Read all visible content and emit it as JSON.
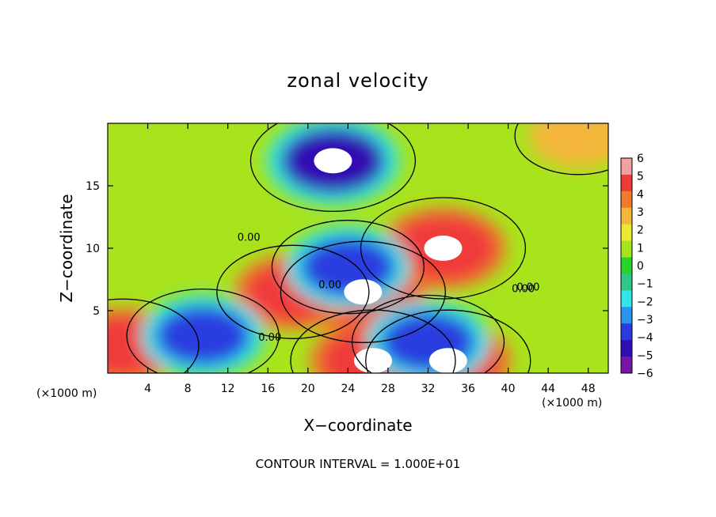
{
  "chart_data": {
    "type": "heatmap",
    "title": "zonal velocity",
    "xlabel": "X−coordinate",
    "ylabel": "Z−coordinate",
    "x_unit_left": "(×1000 m)",
    "x_unit_right": "(×1000 m)",
    "note": "CONTOUR INTERVAL = 1.000E+01",
    "xlim": [
      0,
      50
    ],
    "ylim": [
      0,
      20
    ],
    "x_ticks": [
      "4",
      "8",
      "12",
      "16",
      "20",
      "24",
      "28",
      "32",
      "36",
      "40",
      "44",
      "48"
    ],
    "x_tick_values": [
      4,
      8,
      12,
      16,
      20,
      24,
      28,
      32,
      36,
      40,
      44,
      48
    ],
    "y_ticks": [
      "5",
      "10",
      "15"
    ],
    "y_tick_values": [
      5,
      10,
      15
    ],
    "colorbar": {
      "labels": [
        "6",
        "5",
        "4",
        "3",
        "2",
        "1",
        "0",
        "−1",
        "−2",
        "−3",
        "−4",
        "−5",
        "−6"
      ],
      "values": [
        6,
        5,
        4,
        3,
        2,
        1,
        0,
        -1,
        -2,
        -3,
        -4,
        -5,
        -6
      ],
      "colors": [
        "#f4a0a0",
        "#f03a3a",
        "#f07b2a",
        "#f4b73a",
        "#eaea30",
        "#a8e41c",
        "#28d42a",
        "#2dc88a",
        "#30e6e6",
        "#2a94f0",
        "#2a3ce0",
        "#3010b4",
        "#7a14a4"
      ]
    },
    "contour_labels": [
      "0.00",
      "0.00",
      "0.00",
      "0.00",
      "0.00"
    ],
    "contour_label_positions": [
      [
        14.1,
        10.6
      ],
      [
        22.2,
        6.8
      ],
      [
        16.2,
        2.6
      ],
      [
        41.5,
        6.5
      ],
      [
        42.0,
        6.6
      ]
    ],
    "features": [
      {
        "kind": "max",
        "x": 33.5,
        "y": 10.0,
        "value": 6
      },
      {
        "kind": "max",
        "x": 25.5,
        "y": 6.5,
        "value": 6
      },
      {
        "kind": "max",
        "x": 26.5,
        "y": 1.0,
        "value": 6
      },
      {
        "kind": "max",
        "x": 34.0,
        "y": 1.0,
        "value": 6
      },
      {
        "kind": "max",
        "x": 18.5,
        "y": 6.5,
        "value": 5
      },
      {
        "kind": "max",
        "x": 47.0,
        "y": 19.0,
        "value": 3
      },
      {
        "kind": "max",
        "x": 1.5,
        "y": 2.2,
        "value": 5
      },
      {
        "kind": "min",
        "x": 22.5,
        "y": 17.0,
        "value": -6
      },
      {
        "kind": "min",
        "x": 9.5,
        "y": 3.0,
        "value": -5
      },
      {
        "kind": "min",
        "x": 24.0,
        "y": 8.5,
        "value": -5
      },
      {
        "kind": "min",
        "x": 32.0,
        "y": 2.5,
        "value": -5
      }
    ]
  }
}
